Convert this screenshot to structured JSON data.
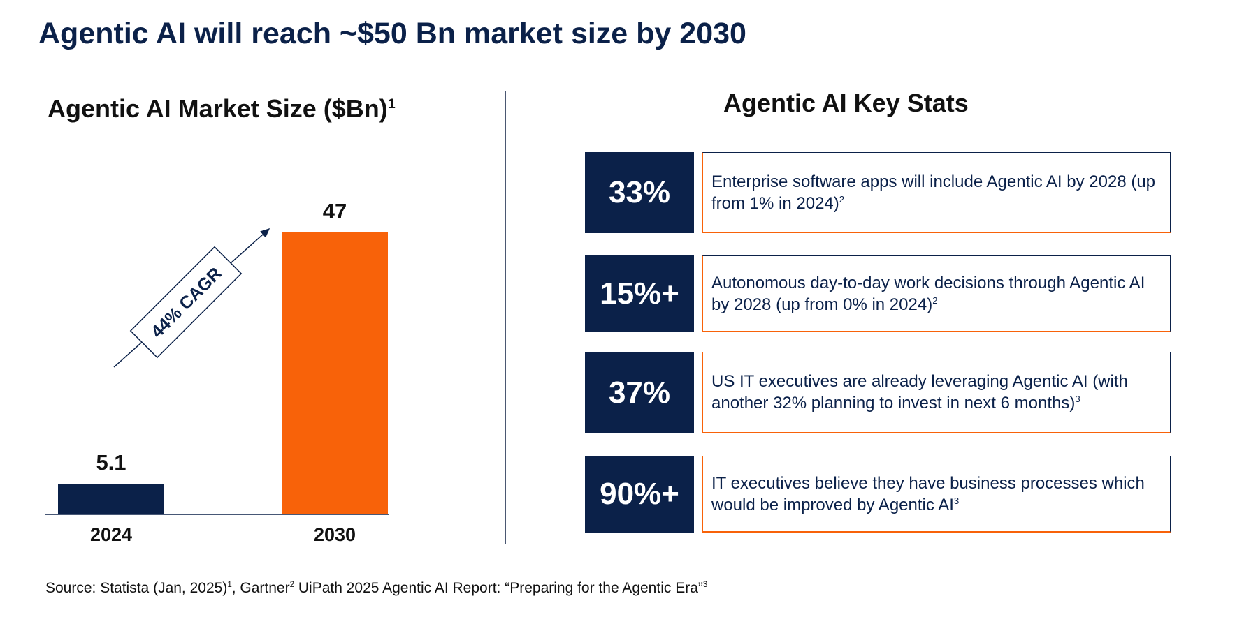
{
  "page": {
    "title": "Agentic AI will reach ~$50 Bn market size by 2030"
  },
  "chart_data": {
    "type": "bar",
    "title": "Agentic AI Market Size ($Bn)",
    "title_footnote": "1",
    "categories": [
      "2024",
      "2030"
    ],
    "values": [
      5.1,
      47
    ],
    "value_labels": [
      "5.1",
      "47"
    ],
    "bar_colors": [
      "#0b2149",
      "#f86209"
    ],
    "ylim": [
      0,
      47
    ],
    "xlabel": "",
    "ylabel": "",
    "annotation": "44% CAGR"
  },
  "stats": {
    "title": "Agentic AI Key Stats",
    "items": [
      {
        "value": "33%",
        "text": "Enterprise software apps will include Agentic AI by 2028 (up from 1% in 2024)",
        "footnote": "2"
      },
      {
        "value": "15%+",
        "text": "Autonomous day-to-day work decisions through Agentic AI by 2028 (up from 0% in 2024)",
        "footnote": "2"
      },
      {
        "value": "37%",
        "text": "US IT executives are already leveraging Agentic AI (with another 32% planning to invest in next 6 months)",
        "footnote": "3"
      },
      {
        "value": "90%+",
        "text": "IT executives believe they have business processes which would be improved by Agentic AI",
        "footnote": "3"
      }
    ]
  },
  "source": {
    "prefix": "Source: Statista (Jan, 2025)",
    "fn1": "1",
    "part2": ", Gartner",
    "fn2": "2",
    "part3": " UiPath 2025 Agentic AI Report: “Preparing for the Agentic Era”",
    "fn3": "3"
  },
  "colors": {
    "navy": "#0b2149",
    "orange": "#f86209"
  }
}
